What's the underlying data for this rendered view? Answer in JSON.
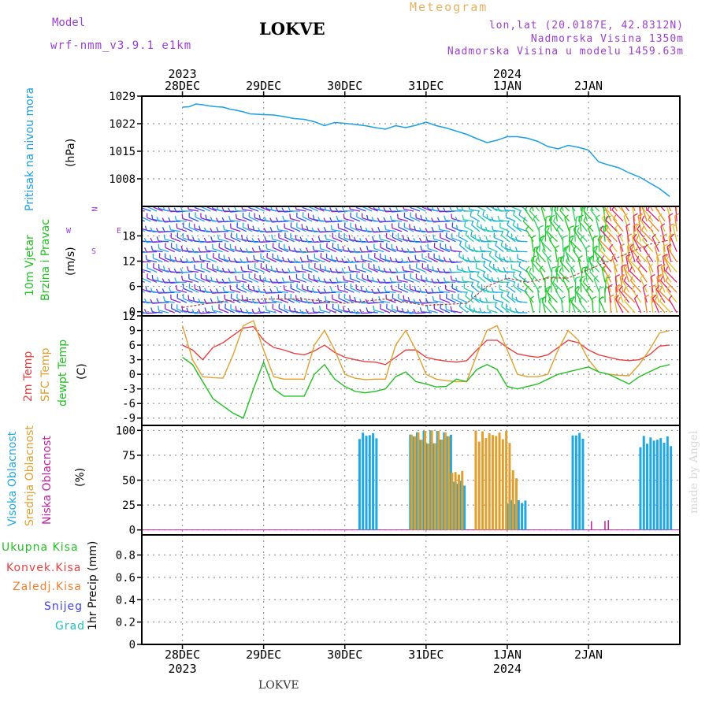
{
  "header": {
    "model_label": "Model",
    "model_name": "wrf-nmm_v3.9.1 e1km",
    "station": "LOKVE",
    "product": "Meteogram",
    "coords": "lon,lat (20.0187E, 42.8312N)",
    "altitude": "Nadmorska Visina 1350m",
    "model_altitude": "Nadmorska Visina u modelu 1459.63m",
    "credit": "made by Angel",
    "footer_station": "LOKVE"
  },
  "time_axis": {
    "days": [
      "28DEC",
      "29DEC",
      "30DEC",
      "31DEC",
      "1JAN",
      "2JAN"
    ],
    "years": [
      {
        "label": "2023",
        "day_index": 0
      },
      {
        "label": "2024",
        "day_index": 4
      }
    ]
  },
  "colors": {
    "pressure": "#1ca0e0",
    "temp2m": "#e84040",
    "sfc": "#e0a030",
    "dew": "#20c020",
    "high_cloud": "#20a8e0",
    "mid_cloud": "#e0a030",
    "low_cloud": "#c020a0",
    "purple": "#9a3fd0",
    "grid": "#999999"
  },
  "panel_labels": {
    "pressure": [
      "Pritisak na nivou mora",
      "(hPa)"
    ],
    "wind": [
      "10m Vjetar",
      "Brzina i Pravac",
      "(m/s)"
    ],
    "compass": [
      "N",
      "E",
      "W",
      "S"
    ],
    "temp": [
      "2m Temp",
      "SFC Temp",
      "dewpt Temp",
      "(C)"
    ],
    "cloud": [
      "Visoka Oblacnost",
      "Srednja Oblacnost",
      "Niska Oblacnost",
      "(%)"
    ],
    "precip_unit": "1hr Precip (mm)",
    "precip_legend": [
      {
        "label": "Ukupna Kisa",
        "color": "#20c020"
      },
      {
        "label": "Konvek.Kisa",
        "color": "#e84040"
      },
      {
        "label": "Zaledj.Kisa",
        "color": "#f08030"
      },
      {
        "label": "Snijeg",
        "color": "#4040e0"
      },
      {
        "label": "Grad",
        "color": "#20c0c0"
      }
    ]
  },
  "chart_data": [
    {
      "type": "line",
      "name": "pressure",
      "ylabel": "(hPa)",
      "ylim": [
        1001,
        1029
      ],
      "yticks": [
        1008,
        1015,
        1022,
        1029
      ],
      "grid": true,
      "x_hours": [
        0,
        2,
        4,
        6,
        8,
        10,
        12,
        14,
        16,
        18,
        20,
        22,
        24,
        27,
        30,
        33,
        36,
        39,
        42,
        45,
        48,
        51,
        54,
        57,
        60,
        63,
        66,
        69,
        72,
        75,
        78,
        81,
        84,
        87,
        90,
        93,
        96,
        99,
        102,
        105,
        108,
        111,
        114,
        117,
        120,
        123,
        126,
        129,
        132,
        135,
        138,
        141,
        144
      ],
      "values": [
        1026.2,
        1026.3,
        1027,
        1026.8,
        1026.5,
        1026.3,
        1026.2,
        1025.7,
        1025.4,
        1025,
        1024.5,
        1024.4,
        1024.3,
        1024.2,
        1023.8,
        1023.3,
        1023.1,
        1022.5,
        1021.5,
        1022.3,
        1022.1,
        1021.8,
        1021.5,
        1021,
        1020.6,
        1021.5,
        1021,
        1021.6,
        1022.4,
        1021.5,
        1020.9,
        1020.1,
        1019.3,
        1018.2,
        1017.2,
        1017.8,
        1018.7,
        1018.7,
        1018.3,
        1017.5,
        1016.2,
        1015.6,
        1016.5,
        1016,
        1015.3,
        1012.3,
        1011.5,
        1010.8,
        1009.5,
        1008.5,
        1007,
        1005.5,
        1003.5
      ]
    },
    {
      "type": "line",
      "name": "10m wind speed",
      "ylabel": "(m/s)",
      "ylim": [
        -1,
        25
      ],
      "yticks": [
        0,
        6,
        12,
        18
      ],
      "grid": true,
      "x_hours": [
        0,
        12,
        24,
        36,
        48,
        60,
        72,
        84,
        90,
        96,
        102,
        108,
        114,
        120,
        126,
        132,
        138,
        144
      ],
      "values": [
        1,
        2.5,
        3,
        3,
        2,
        3,
        1.5,
        2,
        6,
        8,
        7,
        8,
        8,
        10,
        12,
        14,
        16,
        17
      ]
    },
    {
      "type": "line",
      "name": "temperature",
      "ylabel": "(C)",
      "ylim": [
        -10.5,
        12
      ],
      "yticks": [
        -9,
        -6,
        -3,
        0,
        3,
        6,
        9,
        12
      ],
      "grid": true,
      "x_hours": [
        0,
        3,
        6,
        9,
        12,
        15,
        18,
        21,
        24,
        27,
        30,
        33,
        36,
        39,
        42,
        45,
        48,
        51,
        54,
        57,
        60,
        63,
        66,
        69,
        72,
        75,
        78,
        81,
        84,
        87,
        90,
        93,
        96,
        99,
        102,
        105,
        108,
        111,
        114,
        117,
        120,
        123,
        126,
        129,
        132,
        135,
        138,
        141,
        144
      ],
      "series": [
        {
          "name": "2m Temp",
          "color": "#e84040",
          "values": [
            6,
            5,
            3,
            5.5,
            6.5,
            8,
            9.5,
            9.8,
            7,
            5.5,
            5,
            4.3,
            4,
            4.8,
            6,
            4.5,
            3.5,
            3,
            2.6,
            2.5,
            2,
            3.5,
            5,
            5,
            3.5,
            3,
            2.7,
            2.5,
            2.8,
            5,
            7,
            7,
            5.5,
            4.2,
            3.8,
            3.5,
            4,
            5.5,
            7,
            6.5,
            5,
            4,
            3.5,
            3,
            2.8,
            3,
            4,
            5.8,
            6
          ]
        },
        {
          "name": "SFC Temp",
          "color": "#e0a030",
          "values": [
            10,
            3,
            -0.5,
            -0.7,
            -0.8,
            4,
            10,
            11,
            5,
            -0.5,
            -1,
            -1,
            -1,
            6,
            9,
            5,
            0,
            -0.8,
            -1.1,
            -1,
            -1,
            6,
            9,
            5,
            0,
            -1,
            -1.3,
            -1.5,
            -1.5,
            4,
            9,
            10,
            5,
            0,
            -0.5,
            -0.5,
            0,
            5,
            9,
            7,
            3,
            0.5,
            0,
            -0.2,
            -0.3,
            2,
            5,
            8.5,
            9
          ]
        },
        {
          "name": "dewpt Temp",
          "color": "#20c020",
          "values": [
            3.5,
            2,
            -1.5,
            -5,
            -6.5,
            -8,
            -9,
            -3,
            2.5,
            -3,
            -4.5,
            -4.5,
            -4.5,
            0,
            2,
            -1,
            -2.5,
            -3.5,
            -3.8,
            -3.5,
            -3,
            -0.5,
            0.5,
            -1.5,
            -2,
            -2.6,
            -2.5,
            -1,
            -1.5,
            1,
            2,
            1,
            -2.5,
            -3,
            -2.5,
            -2,
            -1,
            0,
            0.5,
            1,
            1.5,
            0.5,
            0,
            -1,
            -2,
            -0.5,
            0.5,
            1.5,
            2
          ]
        }
      ]
    },
    {
      "type": "bar",
      "name": "cloud cover",
      "ylabel": "(%)",
      "ylim": [
        -5,
        105
      ],
      "yticks": [
        0,
        25,
        50,
        75,
        100
      ],
      "grid": true,
      "series": [
        {
          "name": "Visoka Oblacnost",
          "color": "#20a8e0",
          "ranges": [
            [
              52,
              57,
              100
            ],
            [
              67,
              79,
              100
            ],
            [
              79,
              83,
              50
            ],
            [
              96,
              101,
              30
            ],
            [
              115,
              118,
              100
            ],
            [
              135,
              144,
              95
            ]
          ]
        },
        {
          "name": "Srednja Oblacnost",
          "color": "#e0a030",
          "ranges": [
            [
              67,
              78,
              100
            ],
            [
              78,
              82,
              60
            ],
            [
              86,
              96,
              100
            ],
            [
              96,
              98,
              60
            ]
          ]
        },
        {
          "name": "Niska Oblacnost",
          "color": "#c020a0",
          "ranges": [
            [
              120,
              120.5,
              10
            ],
            [
              124,
              125.5,
              10
            ]
          ]
        }
      ]
    },
    {
      "type": "bar",
      "name": "1hr precip",
      "ylabel": "1hr Precip (mm)",
      "ylim": [
        0,
        0.98
      ],
      "yticks": [
        0,
        0.2,
        0.4,
        0.6,
        0.8
      ],
      "grid": true,
      "values": []
    }
  ]
}
